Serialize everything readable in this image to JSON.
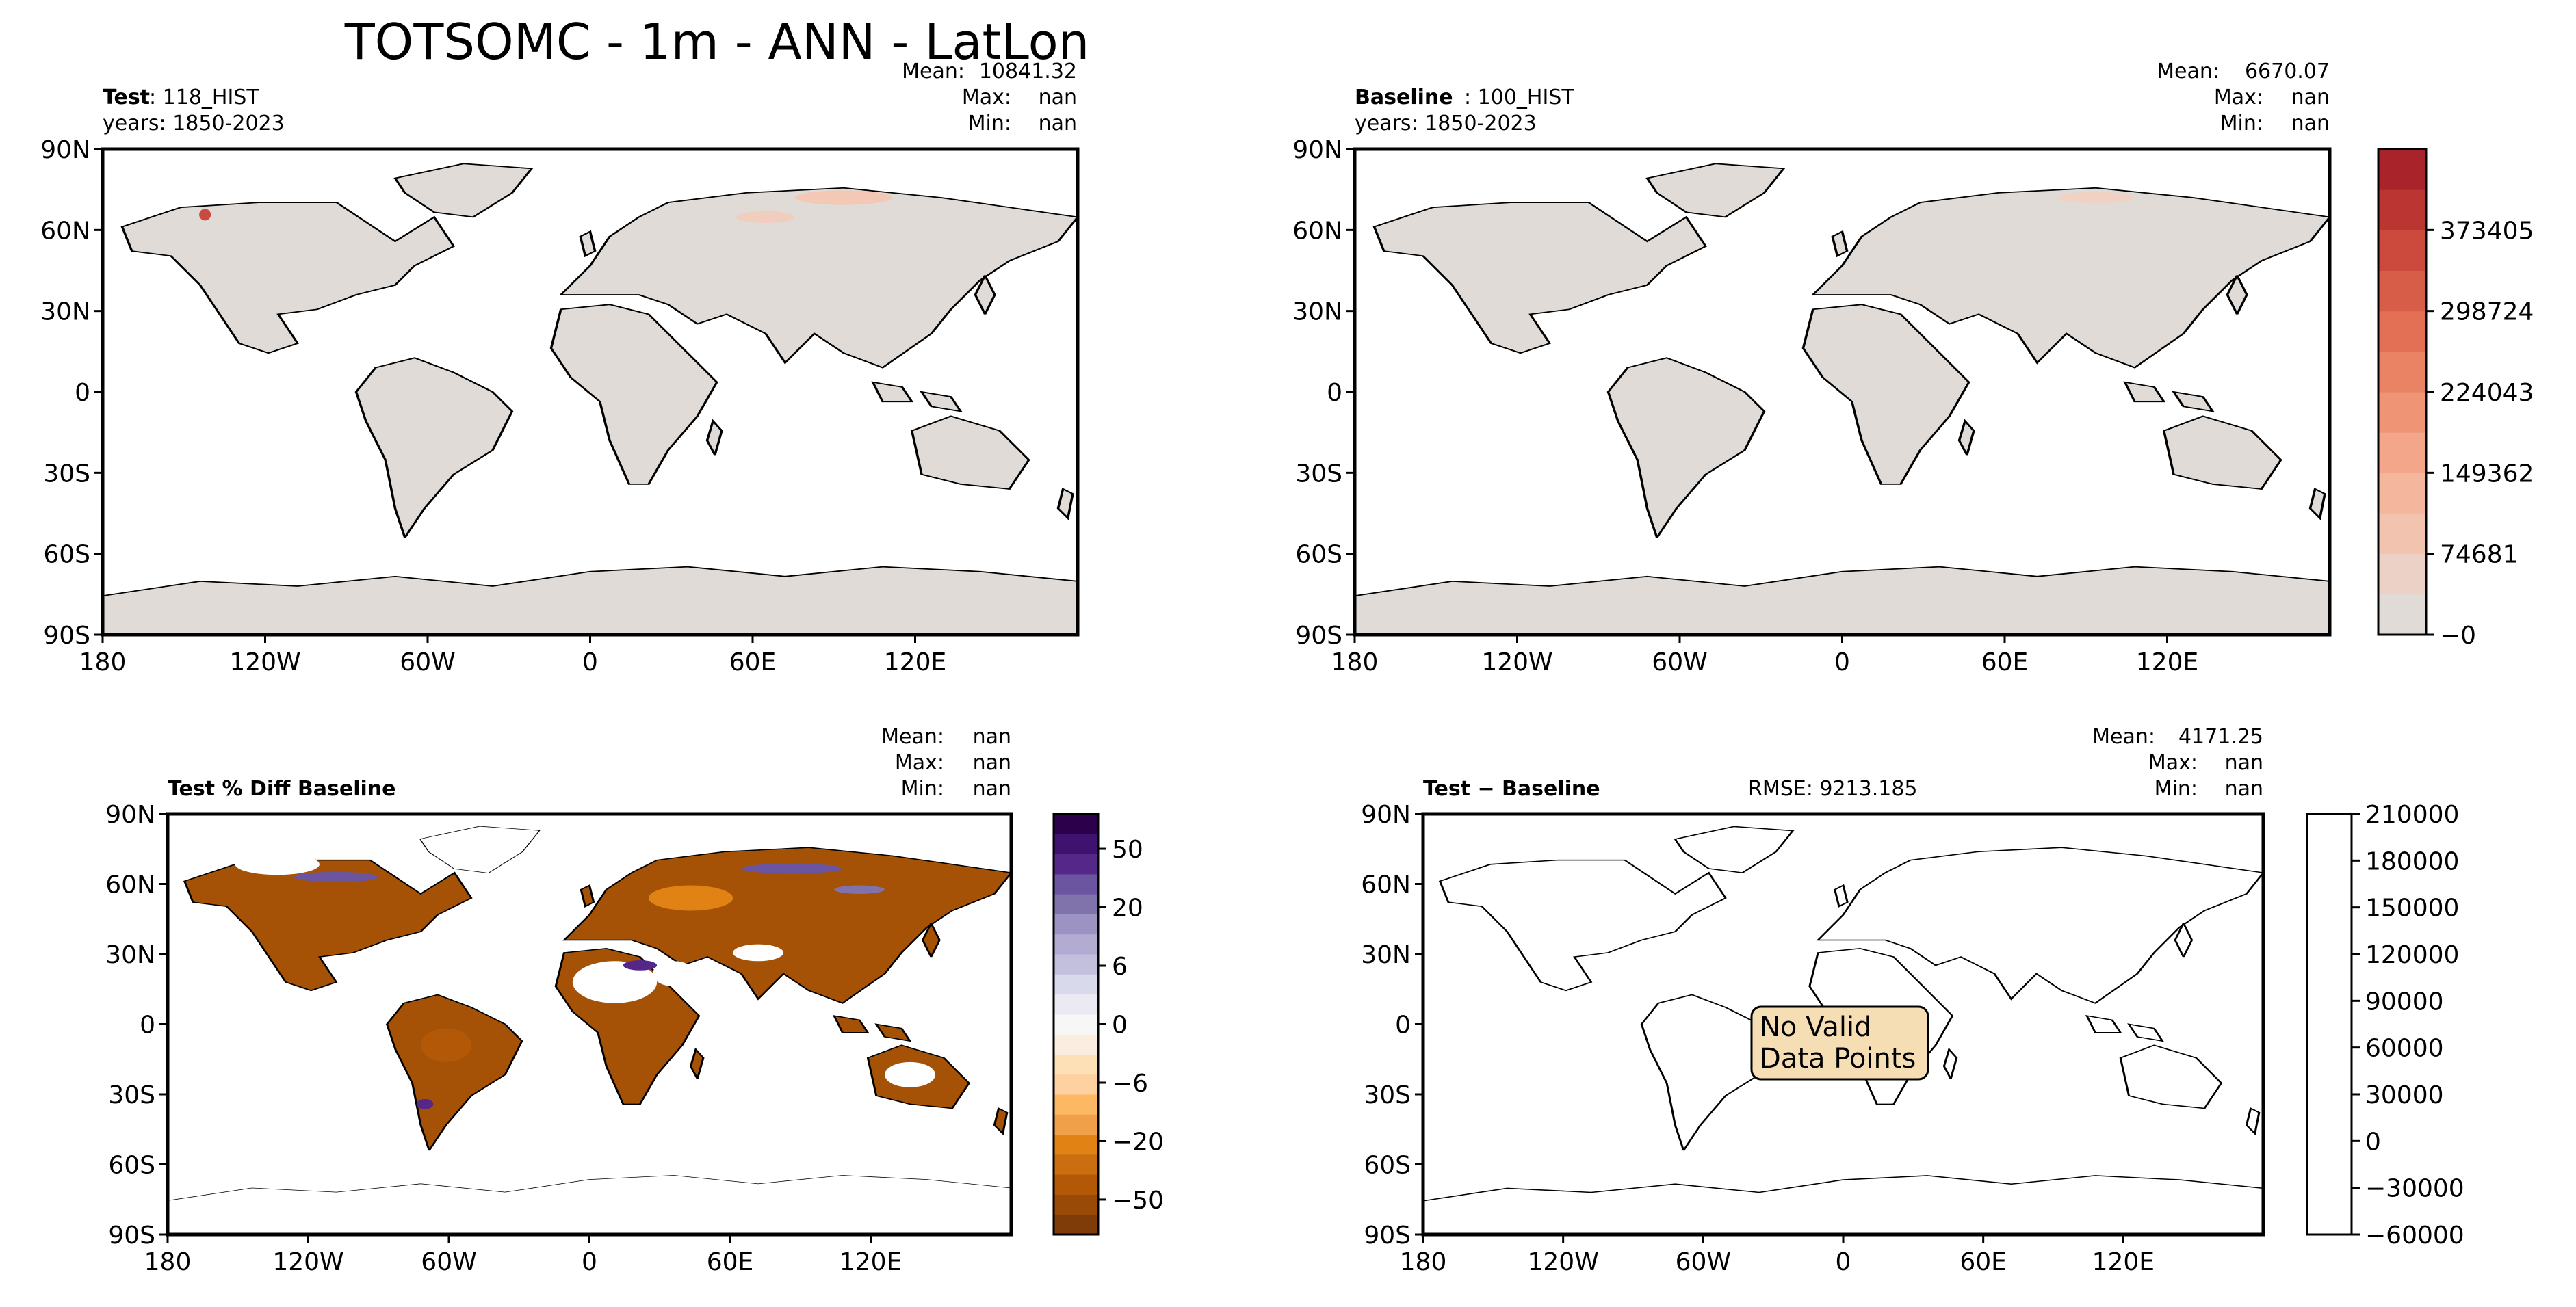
{
  "figure": {
    "title": "TOTSOMC - 1m - ANN - LatLon"
  },
  "panels": {
    "test": {
      "label_bold": "Test",
      "label_rest": ": 118_HIST",
      "years": "years: 1850-2023",
      "stats": {
        "mean_label": "Mean:",
        "mean": "10841.32",
        "max_label": "Max:",
        "max": "nan",
        "min_label": "Min:",
        "min": "nan"
      }
    },
    "baseline": {
      "label_bold": "Baseline",
      "label_rest": ": 100_HIST",
      "years": "years: 1850-2023",
      "stats": {
        "mean_label": "Mean:",
        "mean": "6670.07",
        "max_label": "Max:",
        "max": "nan",
        "min_label": "Min:",
        "min": "nan"
      }
    },
    "pct_diff": {
      "title": "Test % Diff Baseline",
      "stats": {
        "mean_label": "Mean:",
        "mean": "nan",
        "max_label": "Max:",
        "max": "nan",
        "min_label": "Min:",
        "min": "nan"
      }
    },
    "diff": {
      "title": "Test − Baseline",
      "rmse": "RMSE: 9213.185",
      "stats": {
        "mean_label": "Mean:",
        "mean": "4171.25",
        "max_label": "Max:",
        "max": "nan",
        "min_label": "Min:",
        "min": "nan"
      },
      "no_data_line1": "No Valid",
      "no_data_line2": "Data Points"
    }
  },
  "axes": {
    "lat_ticks": [
      "90N",
      "60N",
      "30N",
      "0",
      "30S",
      "60S",
      "90S"
    ],
    "lon_ticks": [
      "180",
      "120W",
      "60W",
      "0",
      "60E",
      "120E"
    ]
  },
  "colorbars": {
    "main": {
      "ticks": [
        "373405",
        "298724",
        "224043",
        "149362",
        "74681",
        "−0"
      ],
      "colors": [
        "#e0dbd7",
        "#ecd2c6",
        "#f2c4b0",
        "#f4b69c",
        "#f3a689",
        "#ef9475",
        "#ea8264",
        "#e37055",
        "#d85d48",
        "#cb4a3d",
        "#bb3633",
        "#a8232a"
      ]
    },
    "pct": {
      "ticks": [
        "50",
        "20",
        "6",
        "0",
        "−6",
        "−20",
        "−50"
      ],
      "colors": [
        "#7f3b08",
        "#9a4a07",
        "#b35806",
        "#cb6e0f",
        "#e08214",
        "#f0a048",
        "#fdb863",
        "#fdd1a0",
        "#fee0b6",
        "#fbeee0",
        "#f7f7f7",
        "#ebeaf2",
        "#d8daeb",
        "#c3c0dd",
        "#b2abd2",
        "#9d93c3",
        "#8073ac",
        "#6b55a0",
        "#542788",
        "#3f1270",
        "#2d004b"
      ]
    },
    "diff": {
      "ticks": [
        "210000",
        "180000",
        "150000",
        "120000",
        "90000",
        "60000",
        "30000",
        "0",
        "−30000",
        "−60000"
      ]
    }
  }
}
